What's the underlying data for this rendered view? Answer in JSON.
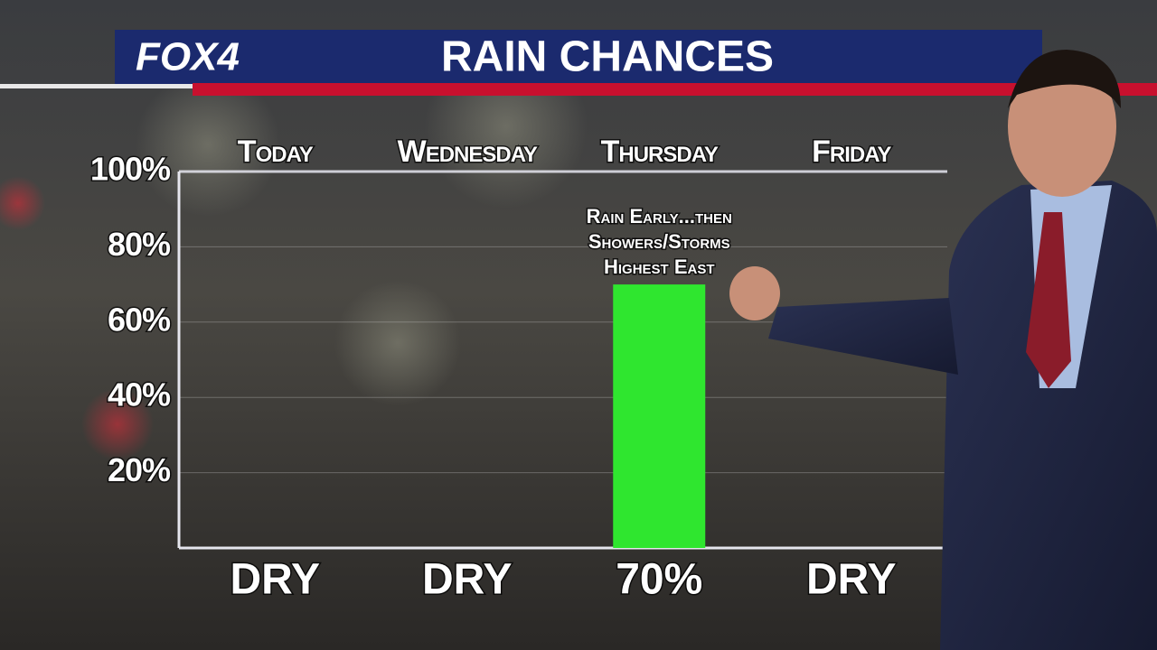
{
  "logo": "FOX4",
  "chart_data": {
    "type": "bar",
    "title": "RAIN CHANCES",
    "categories": [
      "Today",
      "Wednesday",
      "Thursday",
      "Friday"
    ],
    "values": [
      0,
      0,
      70,
      0
    ],
    "value_labels": [
      "DRY",
      "DRY",
      "70%",
      "DRY"
    ],
    "color": "#2fe62f",
    "annotation": [
      "Rain Early...then",
      "Showers/Storms",
      "Highest East"
    ],
    "ylim": [
      0,
      100
    ],
    "yticks": [
      {
        "value": 20,
        "label": "20%"
      },
      {
        "value": 40,
        "label": "40%"
      },
      {
        "value": 60,
        "label": "60%"
      },
      {
        "value": 80,
        "label": "80%"
      },
      {
        "value": 100,
        "label": "100%"
      }
    ],
    "grid": true
  }
}
